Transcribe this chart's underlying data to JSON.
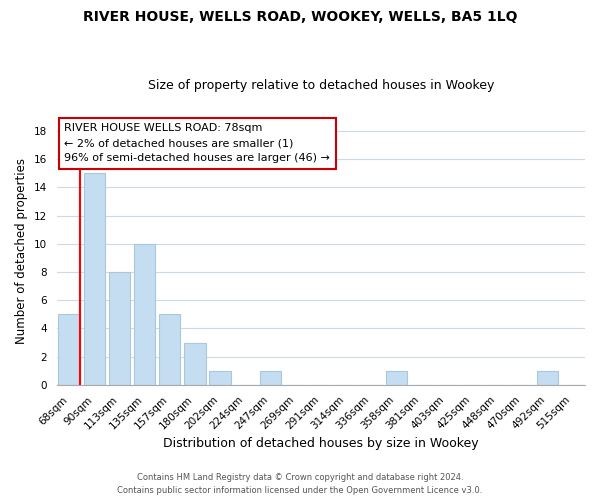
{
  "title1": "RIVER HOUSE, WELLS ROAD, WOOKEY, WELLS, BA5 1LQ",
  "title2": "Size of property relative to detached houses in Wookey",
  "xlabel": "Distribution of detached houses by size in Wookey",
  "ylabel": "Number of detached properties",
  "bar_labels": [
    "68sqm",
    "90sqm",
    "113sqm",
    "135sqm",
    "157sqm",
    "180sqm",
    "202sqm",
    "224sqm",
    "247sqm",
    "269sqm",
    "291sqm",
    "314sqm",
    "336sqm",
    "358sqm",
    "381sqm",
    "403sqm",
    "425sqm",
    "448sqm",
    "470sqm",
    "492sqm",
    "515sqm"
  ],
  "bar_values": [
    5,
    15,
    8,
    10,
    5,
    3,
    1,
    0,
    1,
    0,
    0,
    0,
    0,
    1,
    0,
    0,
    0,
    0,
    0,
    1,
    0
  ],
  "bar_color": "#c5ddf0",
  "bar_edge_color": "#a8c8e0",
  "red_line_after_bar": 0,
  "annotation_title": "RIVER HOUSE WELLS ROAD: 78sqm",
  "annotation_line1": "← 2% of detached houses are smaller (1)",
  "annotation_line2": "96% of semi-detached houses are larger (46) →",
  "annotation_box_color": "#ffffff",
  "annotation_box_edge_color": "#cc0000",
  "ylim": [
    0,
    19
  ],
  "yticks": [
    0,
    2,
    4,
    6,
    8,
    10,
    12,
    14,
    16,
    18
  ],
  "footer1": "Contains HM Land Registry data © Crown copyright and database right 2024.",
  "footer2": "Contains public sector information licensed under the Open Government Licence v3.0.",
  "background_color": "#ffffff",
  "grid_color": "#ccd9e8",
  "title1_fontsize": 10,
  "title2_fontsize": 9,
  "ylabel_fontsize": 8.5,
  "xlabel_fontsize": 9,
  "tick_fontsize": 7.5,
  "annotation_fontsize": 8,
  "footer_fontsize": 6
}
